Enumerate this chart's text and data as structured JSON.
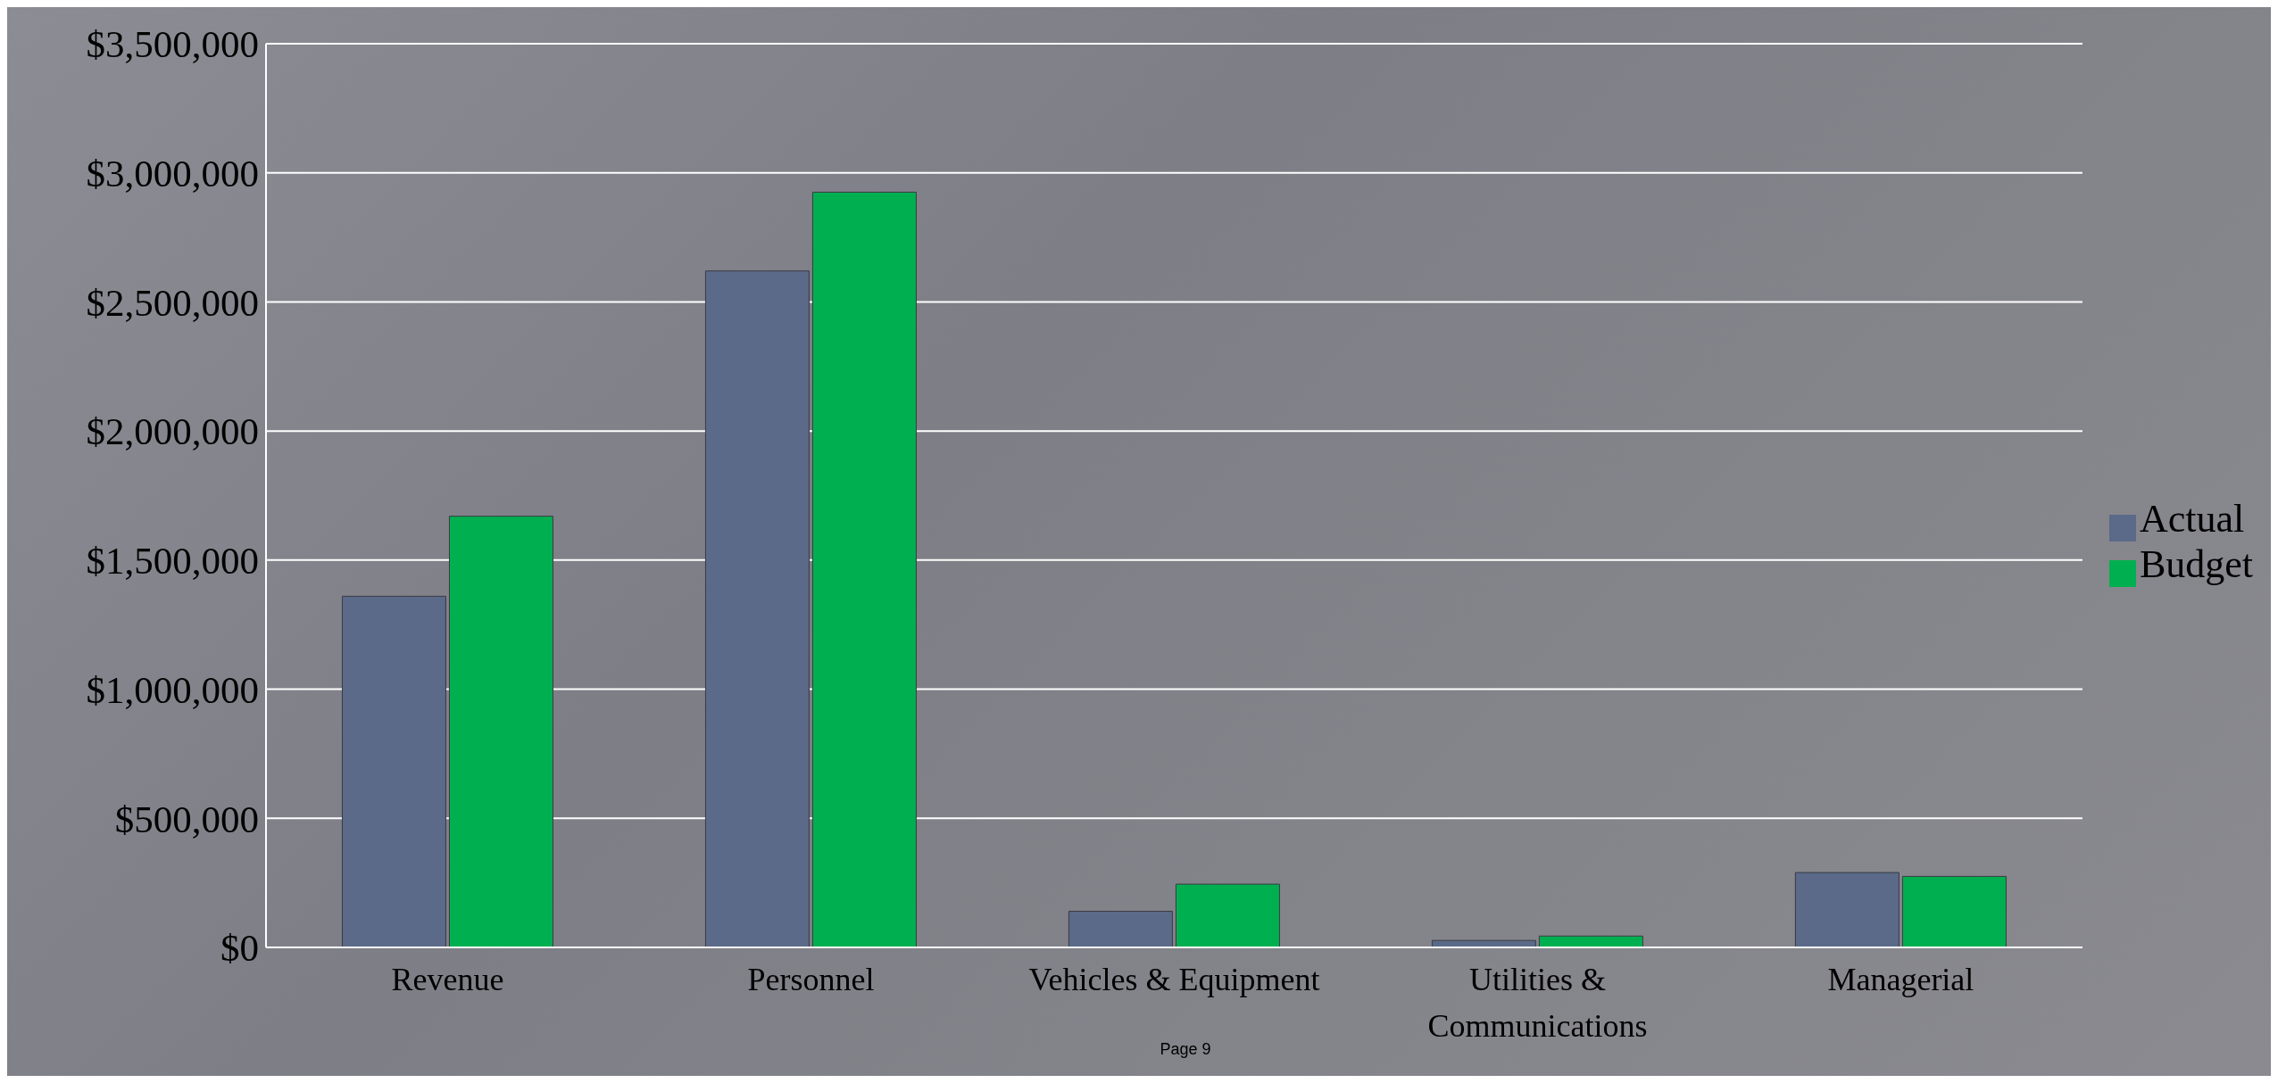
{
  "chart_data": {
    "type": "bar",
    "categories": [
      "Revenue",
      "Personnel",
      "Vehicles & Equipment",
      "Utilities & Communications",
      "Managerial"
    ],
    "series": [
      {
        "name": "Actual",
        "color": "#5a6a88",
        "values": [
          1360000,
          2620000,
          140000,
          27000,
          290000
        ]
      },
      {
        "name": "Budget",
        "color": "#00b050",
        "values": [
          1670000,
          2925000,
          245000,
          44000,
          275000
        ]
      }
    ],
    "ylim": [
      0,
      3500000
    ],
    "yticks": [
      {
        "value": 0,
        "label": "$0"
      },
      {
        "value": 500000,
        "label": "$500,000"
      },
      {
        "value": 1000000,
        "label": "$1,000,000"
      },
      {
        "value": 1500000,
        "label": "$1,500,000"
      },
      {
        "value": 2000000,
        "label": "$2,000,000"
      },
      {
        "value": 2500000,
        "label": "$2,500,000"
      },
      {
        "value": 3000000,
        "label": "$3,000,000"
      },
      {
        "value": 3500000,
        "label": "$3,500,000"
      }
    ],
    "grid": "y",
    "legend": "right",
    "annotations": [
      "Page 9"
    ]
  }
}
